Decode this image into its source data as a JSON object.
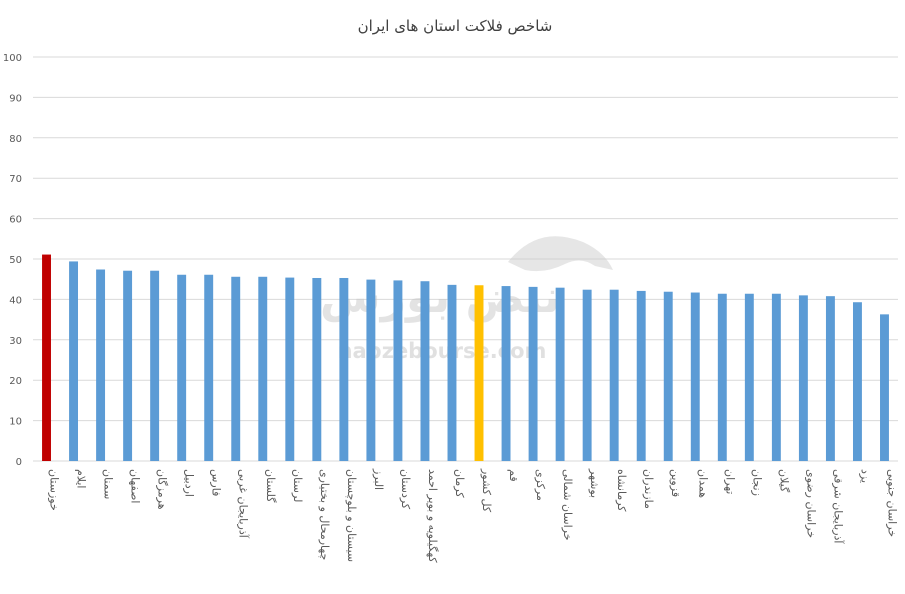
{
  "chart_data": {
    "type": "bar",
    "title": "شاخص فلاکت استان های ایران",
    "xlabel": "",
    "ylabel": "",
    "ylim": [
      0,
      100
    ],
    "yticks": [
      0,
      10,
      20,
      30,
      40,
      50,
      60,
      70,
      80,
      90,
      100
    ],
    "grid": true,
    "legend": "none",
    "categories": [
      "خوزستان",
      "ایلام",
      "سمنان",
      "اصفهان",
      "هرمزگان",
      "اردبیل",
      "فارس",
      "آذربایجان غربی",
      "گلستان",
      "لرستان",
      "چهارمحال و بختیاری",
      "سیستان و بلوچستان",
      "البرز",
      "کردستان",
      "کهگیلویه و بویر احمد",
      "کرمان",
      "کل کشور",
      "قم",
      "مرکزی",
      "خراسان شمالی",
      "بوشهر",
      "کرمانشاه",
      "مازندران",
      "قزوین",
      "همدان",
      "تهران",
      "زنجان",
      "گیلان",
      "خراسان رضوی",
      "آذربایجان شرقی",
      "یزد",
      "خراسان جنوبی"
    ],
    "values": [
      51.1,
      49.4,
      47.4,
      47.1,
      47.1,
      46.1,
      46.1,
      45.6,
      45.6,
      45.4,
      45.3,
      45.3,
      44.9,
      44.7,
      44.5,
      43.6,
      43.5,
      43.3,
      43.1,
      42.9,
      42.4,
      42.4,
      42.1,
      41.9,
      41.7,
      41.4,
      41.4,
      41.4,
      41.0,
      40.8,
      39.3,
      36.3
    ],
    "highlights": {
      "0": "#c00000",
      "16": "#ffc000"
    },
    "colors": {
      "bar": "#5b9bd5",
      "grid": "#d9d9d9",
      "axis_text": "#595959",
      "title": "#404040"
    },
    "watermark": {
      "brand": "نبض بورس",
      "url": "nabzebourse.com"
    }
  }
}
